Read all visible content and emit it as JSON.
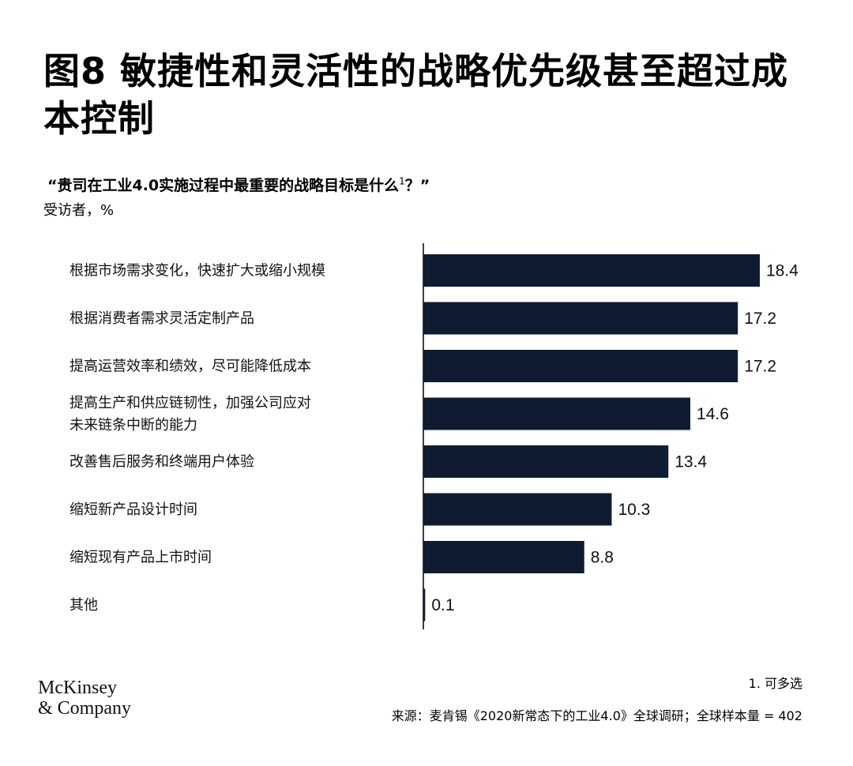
{
  "header": {
    "title": "图8 敏捷性和灵活性的战略优先级甚至超过成本控制",
    "question": "“贵司在工业4.0实施过程中最重要的战略目标是什么",
    "question_sup": "1",
    "question_end": "？”",
    "subtitle": "受访者，%"
  },
  "chart_data": {
    "type": "bar",
    "orientation": "horizontal",
    "categories": [
      "根据市场需求变化，快速扩大或缩小规模",
      "根据消费者需求灵活定制产品",
      "提高运营效率和绩效，尽可能降低成本",
      "提高生产和供应链韧性，加强公司应对\n未来链条中断的能力",
      "改善售后服务和终端用户体验",
      "缩短新产品设计时间",
      "缩短现有产品上市时间",
      "其他"
    ],
    "values": [
      18.4,
      17.2,
      17.2,
      14.6,
      13.4,
      10.3,
      8.8,
      0.1
    ],
    "value_labels": [
      "18.4",
      "17.2",
      "17.2",
      "14.6",
      "13.4",
      "10.3",
      "8.8",
      "0.1"
    ],
    "bar_color": "#0f1b31",
    "xlim": [
      0,
      18.4
    ]
  },
  "footer": {
    "logo_line1": "McKinsey",
    "logo_line2": "& Company",
    "footnote": "1.  可多选",
    "source": "来源：麦肯锡《2020新常态下的工业4.0》全球调研；全球样本量 = 402"
  }
}
